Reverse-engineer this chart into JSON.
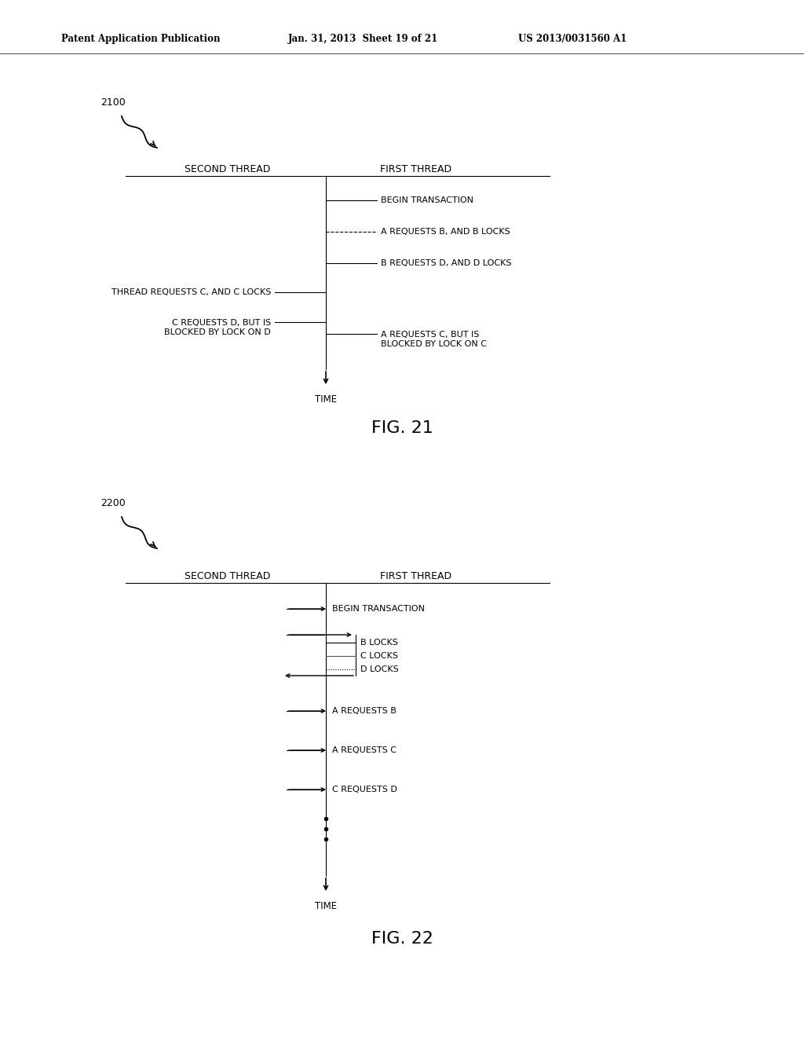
{
  "bg_color": "#ffffff",
  "header_text": "Patent Application Publication",
  "header_date": "Jan. 31, 2013  Sheet 19 of 21",
  "header_patent": "US 2013/0031560 A1",
  "fig21_label": "2100",
  "fig22_label": "2200",
  "fig21_caption": "FIG. 21",
  "fig22_caption": "FIG. 22",
  "second_thread": "SECOND THREAD",
  "first_thread": "FIRST THREAD",
  "time_label": "TIME"
}
